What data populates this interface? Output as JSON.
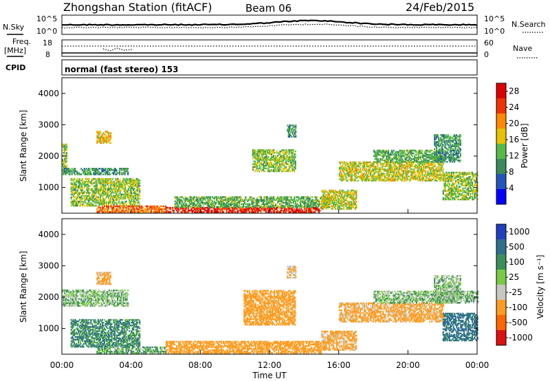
{
  "header": {
    "title": "Zhongshan Station (fitACF)",
    "beam": "Beam 06",
    "date": "24/Feb/2015"
  },
  "top_panels": {
    "nsky_label": "N.Sky",
    "nsky_ticks": [
      "10^5",
      "10^0"
    ],
    "nsearch_label": "N.Search",
    "nsearch_ticks": [
      "10^5",
      "10^0"
    ],
    "freq_label": "Freq.",
    "freq_unit": "[MHz]",
    "freq_ticks": [
      "18",
      "8"
    ],
    "nave_label": "Nave",
    "nave_ticks": [
      "60",
      "0"
    ],
    "cpid_label": "CPID",
    "cpid_text": "normal (fast stereo) 153"
  },
  "chart_data": [
    {
      "type": "heatmap",
      "name": "power",
      "ylabel": "Slant Range [km]",
      "ylim": [
        180,
        4500
      ],
      "yticks": [
        "1000",
        "2000",
        "3000",
        "4000"
      ],
      "colorbar_label": "Power [dB]",
      "colorbar_ticks": [
        "4",
        "8",
        "12",
        "16",
        "20",
        "24",
        "28"
      ],
      "colorbar_range": [
        0,
        30
      ],
      "colors": [
        "#0000ff",
        "#2255bb",
        "#3a8a5a",
        "#55bb44",
        "#e6c200",
        "#ff8800",
        "#ee3300",
        "#dd0000"
      ],
      "echo_regions": [
        {
          "t": [
            0.0,
            0.3
          ],
          "r": [
            1500,
            2400
          ],
          "v": 14
        },
        {
          "t": [
            0.0,
            3.8
          ],
          "r": [
            1400,
            1600
          ],
          "v": 10
        },
        {
          "t": [
            0.5,
            4.5
          ],
          "r": [
            400,
            1300
          ],
          "v": 14
        },
        {
          "t": [
            2.0,
            2.8
          ],
          "r": [
            2400,
            2800
          ],
          "v": 18
        },
        {
          "t": [
            2.0,
            6.0
          ],
          "r": [
            200,
            400
          ],
          "v": 22
        },
        {
          "t": [
            6.0,
            15.0
          ],
          "r": [
            200,
            360
          ],
          "v": 26
        },
        {
          "t": [
            6.5,
            15.5
          ],
          "r": [
            360,
            700
          ],
          "v": 12
        },
        {
          "t": [
            11.0,
            13.5
          ],
          "r": [
            1500,
            2200
          ],
          "v": 14
        },
        {
          "t": [
            13.0,
            13.5
          ],
          "r": [
            2600,
            3000
          ],
          "v": 10
        },
        {
          "t": [
            15.0,
            17.0
          ],
          "r": [
            300,
            900
          ],
          "v": 16
        },
        {
          "t": [
            16.0,
            22.0
          ],
          "r": [
            1200,
            1800
          ],
          "v": 16
        },
        {
          "t": [
            18.0,
            22.0
          ],
          "r": [
            1800,
            2200
          ],
          "v": 12
        },
        {
          "t": [
            21.5,
            23.0
          ],
          "r": [
            1800,
            2700
          ],
          "v": 10
        },
        {
          "t": [
            22.0,
            24.0
          ],
          "r": [
            600,
            1500
          ],
          "v": 14
        }
      ]
    },
    {
      "type": "heatmap",
      "name": "velocity",
      "ylabel": "Slant Range [km]",
      "ylim": [
        180,
        4500
      ],
      "yticks": [
        "1000",
        "2000",
        "3000",
        "4000"
      ],
      "colorbar_label": "Velocity [m s⁻¹]",
      "colorbar_ticks": [
        "1000",
        "500",
        "100",
        "25",
        "-25",
        "-100",
        "-500",
        "-1000"
      ],
      "colors": [
        "#1f3fbf",
        "#2f6f8f",
        "#3a8f5a",
        "#77cc44",
        "#c8c8c0",
        "#ff9c20",
        "#ff6600",
        "#dd1111"
      ],
      "echo_regions": [
        {
          "t": [
            0.0,
            3.8
          ],
          "r": [
            1700,
            2200
          ],
          "v": 0
        },
        {
          "t": [
            0.5,
            4.5
          ],
          "r": [
            400,
            1300
          ],
          "v": 80
        },
        {
          "t": [
            2.0,
            2.8
          ],
          "r": [
            2400,
            2800
          ],
          "v": -150
        },
        {
          "t": [
            2.0,
            6.0
          ],
          "r": [
            200,
            400
          ],
          "v": 30
        },
        {
          "t": [
            6.0,
            15.0
          ],
          "r": [
            200,
            600
          ],
          "v": -300
        },
        {
          "t": [
            10.5,
            13.5
          ],
          "r": [
            1100,
            2200
          ],
          "v": -300
        },
        {
          "t": [
            13.0,
            13.5
          ],
          "r": [
            2600,
            3000
          ],
          "v": -100
        },
        {
          "t": [
            15.0,
            17.0
          ],
          "r": [
            300,
            900
          ],
          "v": -150
        },
        {
          "t": [
            16.0,
            22.0
          ],
          "r": [
            1200,
            1800
          ],
          "v": -150
        },
        {
          "t": [
            18.0,
            24.0
          ],
          "r": [
            1800,
            2200
          ],
          "v": 0
        },
        {
          "t": [
            21.5,
            23.0
          ],
          "r": [
            1800,
            2700
          ],
          "v": 0
        },
        {
          "t": [
            22.0,
            24.0
          ],
          "r": [
            600,
            1500
          ],
          "v": 150
        }
      ]
    }
  ],
  "xaxis": {
    "label": "Time UT",
    "ticks": [
      "00:00",
      "04:00",
      "08:00",
      "12:00",
      "16:00",
      "20:00",
      "00:00"
    ]
  }
}
